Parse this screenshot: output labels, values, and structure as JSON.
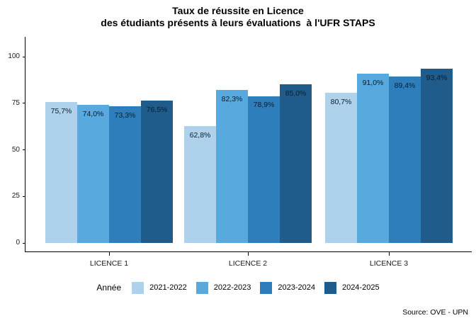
{
  "title": {
    "line1": "Taux de réussite en Licence",
    "line2": "des étudiants présents à leurs évaluations  à l'UFR STAPS"
  },
  "source": "Source: OVE - UPN",
  "chart_data": {
    "type": "bar",
    "title": "Taux de réussite en Licence des étudiants présents à leurs évaluations à l'UFR STAPS",
    "categories": [
      "LICENCE 1",
      "LICENCE 2",
      "LICENCE 3"
    ],
    "series": [
      {
        "name": "2021-2022",
        "color": "#AED2EC",
        "values": [
          75.7,
          62.8,
          80.7
        ],
        "labels": [
          "75,7%",
          "62,8%",
          "80,7%"
        ]
      },
      {
        "name": "2022-2023",
        "color": "#58A9DE",
        "values": [
          74.0,
          82.3,
          91.0
        ],
        "labels": [
          "74,0%",
          "82,3%",
          "91,0%"
        ]
      },
      {
        "name": "2023-2024",
        "color": "#2E7EBC",
        "values": [
          73.3,
          78.9,
          89.4
        ],
        "labels": [
          "73,3%",
          "78,9%",
          "89,4%"
        ]
      },
      {
        "name": "2024-2025",
        "color": "#1F5C8B",
        "values": [
          76.5,
          85.0,
          93.4
        ],
        "labels": [
          "76,5%",
          "85,0%",
          "93,4%"
        ]
      }
    ],
    "xlabel": "",
    "ylabel": "",
    "y_ticks": [
      0,
      25,
      50,
      75,
      100
    ],
    "ylim": [
      0,
      100
    ],
    "grid": false,
    "legend_title": "Année",
    "legend_position": "bottom",
    "axis_color": "#000000",
    "label_color": "#0b1c2c"
  }
}
